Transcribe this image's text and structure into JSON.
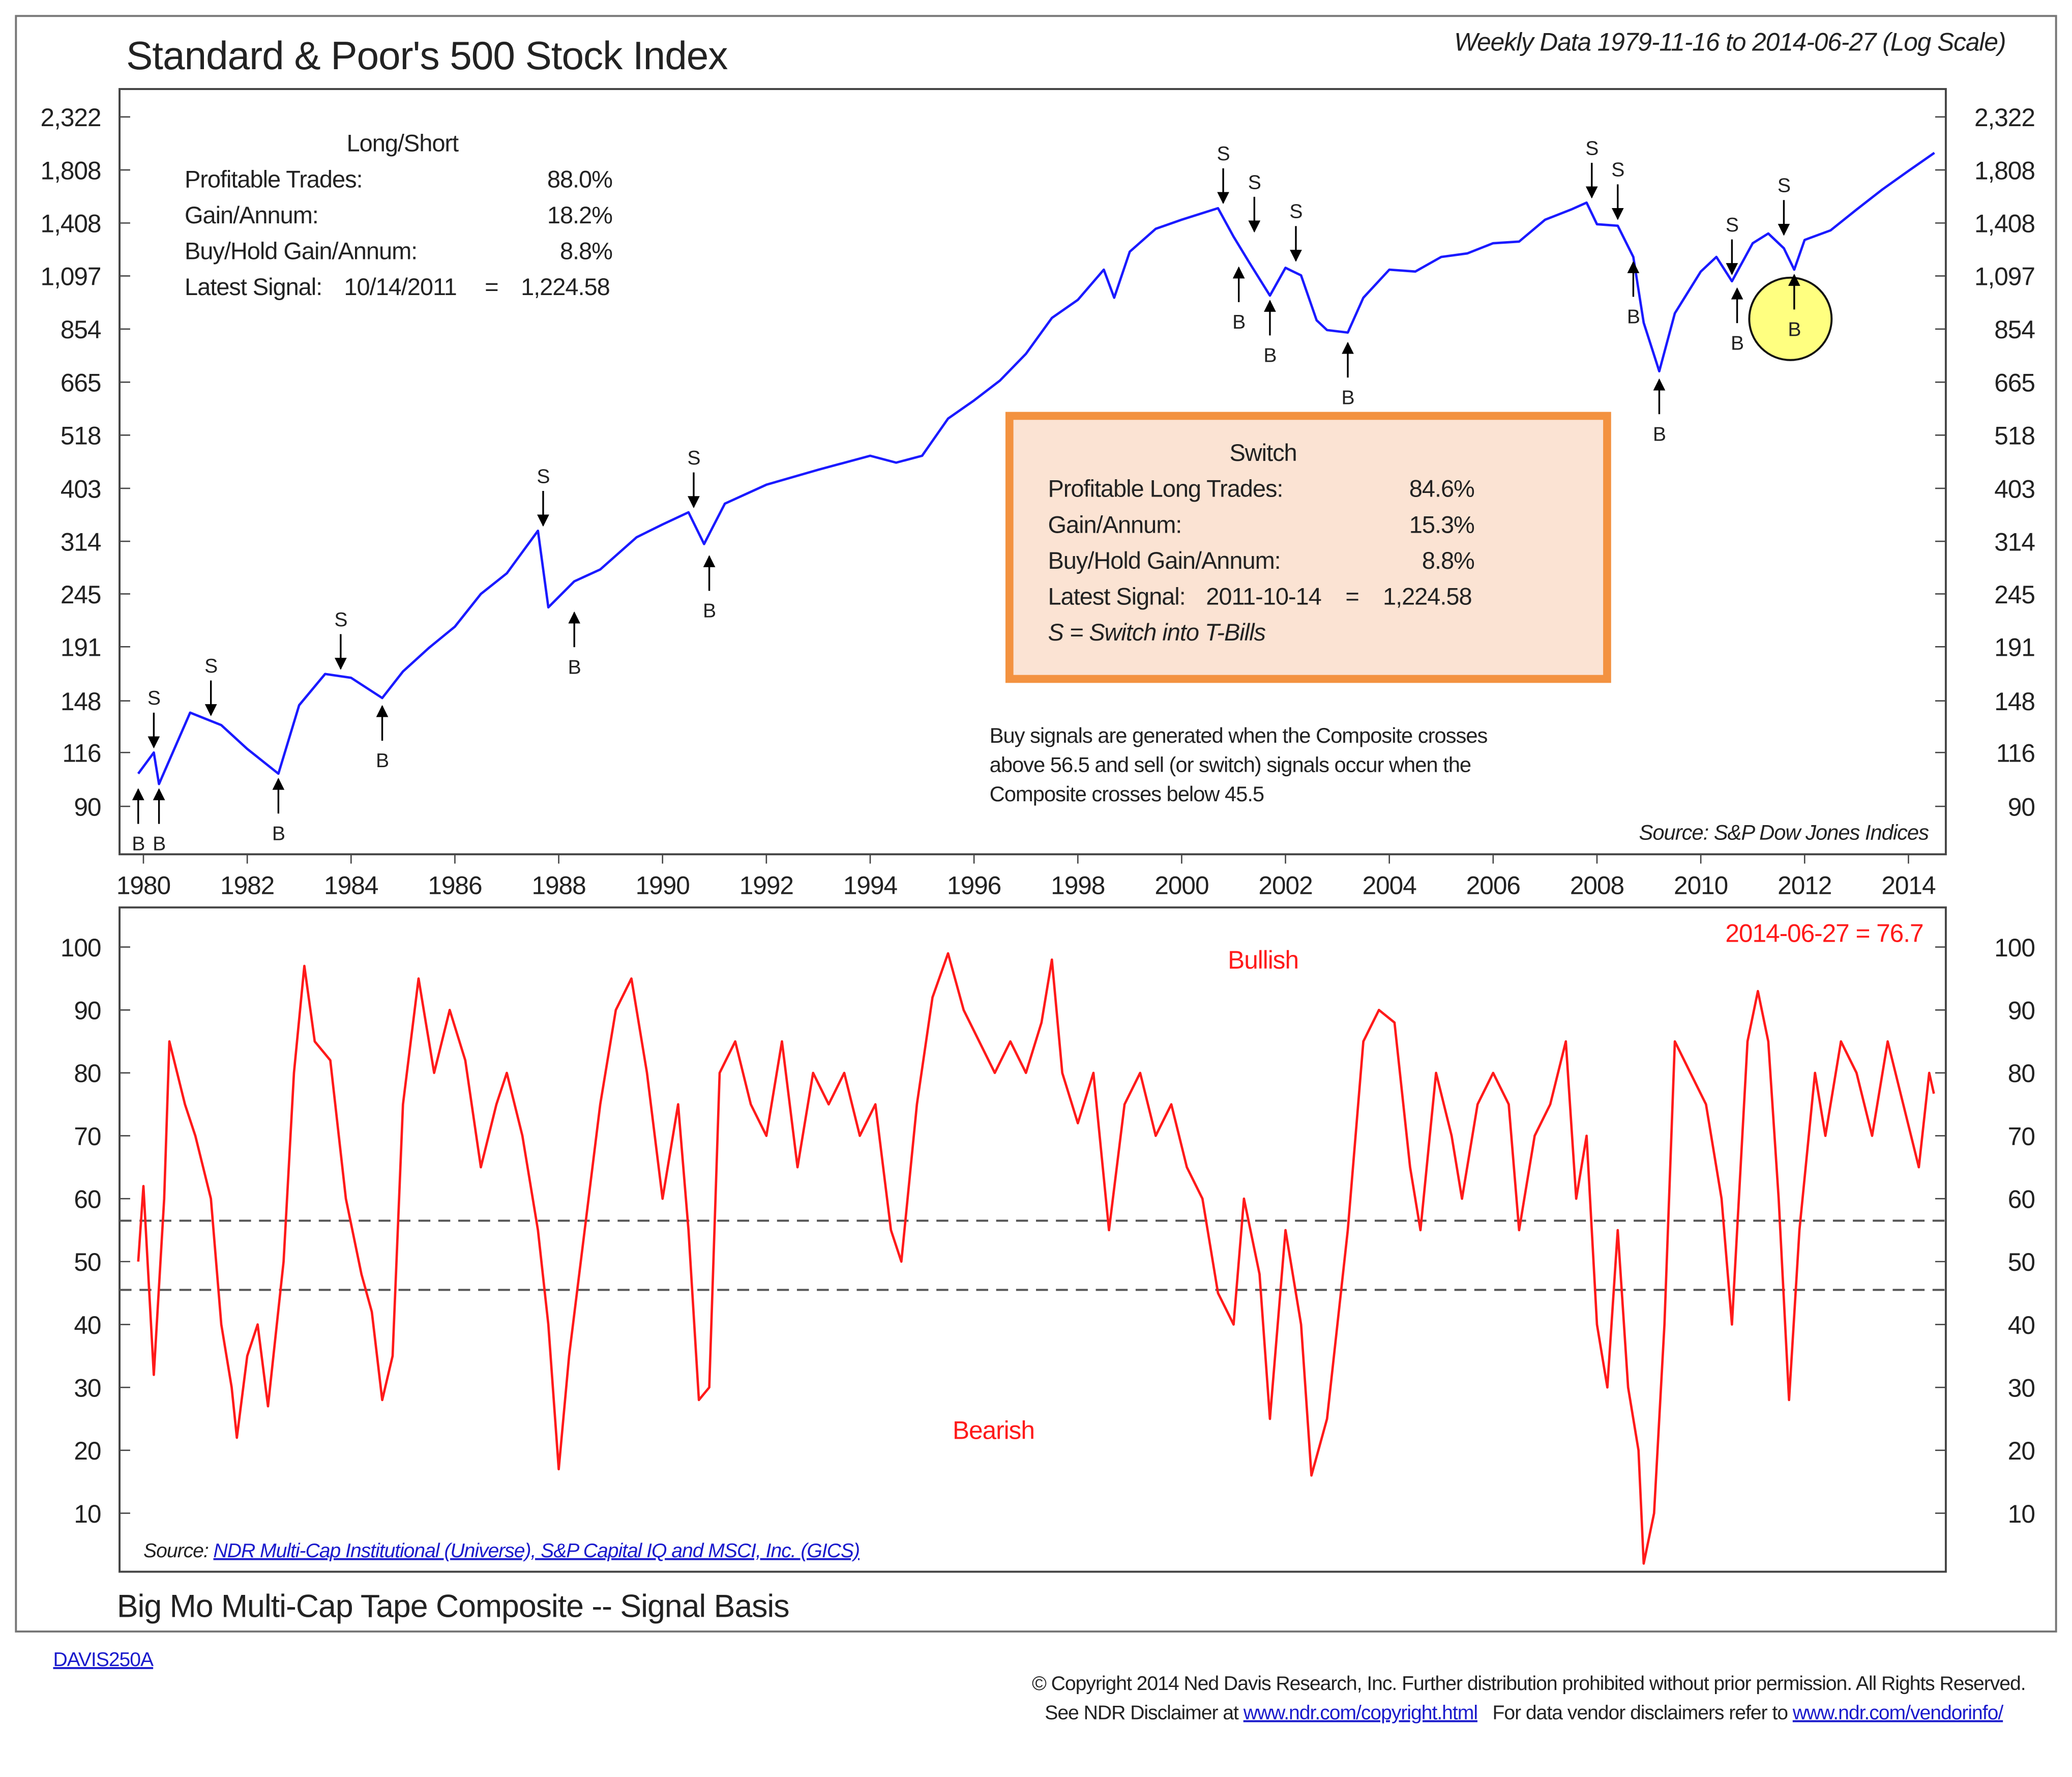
{
  "chart_data": [
    {
      "type": "line",
      "title": "Standard & Poor's 500 Stock Index",
      "subtitle": "Weekly Data 1979-11-16 to 2014-06-27 (Log Scale)",
      "log_scale": true,
      "color": "#1a1aff",
      "xlim": [
        1979.54,
        2014.72
      ],
      "xticks": [
        1980,
        1982,
        1984,
        1986,
        1988,
        1990,
        1992,
        1994,
        1996,
        1998,
        2000,
        2002,
        2004,
        2006,
        2008,
        2010,
        2012,
        2014
      ],
      "ylim": [
        71.8,
        2648
      ],
      "yticks": [
        90,
        116,
        148,
        191,
        245,
        314,
        403,
        518,
        665,
        854,
        {
          "value": 1097,
          "label": "1,097"
        },
        {
          "value": 1408,
          "label": "1,408"
        },
        {
          "value": 1808,
          "label": "1,808"
        },
        {
          "value": 2322,
          "label": "2,322"
        }
      ],
      "x": [
        1979.9,
        1980.2,
        1980.3,
        1980.9,
        1981.5,
        1982.0,
        1982.6,
        1983.0,
        1983.5,
        1984.0,
        1984.6,
        1985.0,
        1985.5,
        1986.0,
        1986.5,
        1987.0,
        1987.6,
        1987.8,
        1988.3,
        1988.8,
        1989.5,
        1990.0,
        1990.5,
        1990.8,
        1991.2,
        1992.0,
        1993.0,
        1994.0,
        1994.5,
        1995.0,
        1995.5,
        1996.0,
        1996.5,
        1997.0,
        1997.5,
        1998.0,
        1998.5,
        1998.7,
        1999.0,
        1999.5,
        2000.0,
        2000.7,
        2001.0,
        2001.3,
        2001.7,
        2002.0,
        2002.3,
        2002.6,
        2002.8,
        2003.2,
        2003.5,
        2004.0,
        2004.5,
        2005.0,
        2005.5,
        2006.0,
        2006.5,
        2007.0,
        2007.5,
        2007.8,
        2008.0,
        2008.4,
        2008.7,
        2008.9,
        2009.2,
        2009.5,
        2010.0,
        2010.3,
        2010.6,
        2011.0,
        2011.3,
        2011.6,
        2011.8,
        2012.0,
        2012.5,
        2013.0,
        2013.5,
        2014.0,
        2014.5
      ],
      "values": [
        105,
        116,
        100,
        140,
        132,
        118,
        105,
        145,
        168,
        165,
        150,
        170,
        190,
        210,
        245,
        270,
        330,
        230,
        260,
        275,
        320,
        340,
        360,
        310,
        375,
        410,
        440,
        470,
        455,
        470,
        560,
        610,
        670,
        760,
        900,
        980,
        1130,
        990,
        1230,
        1370,
        1430,
        1510,
        1320,
        1170,
        1000,
        1140,
        1100,
        890,
        850,
        840,
        990,
        1130,
        1120,
        1200,
        1220,
        1280,
        1290,
        1430,
        1500,
        1550,
        1400,
        1390,
        1200,
        880,
        700,
        920,
        1120,
        1200,
        1070,
        1280,
        1340,
        1250,
        1130,
        1300,
        1360,
        1500,
        1650,
        1800,
        1960
      ],
      "signals": [
        {
          "label": "S",
          "x": 1980.2,
          "value": 116
        },
        {
          "label": "S",
          "x": 1981.3,
          "value": 135
        },
        {
          "label": "S",
          "x": 1983.8,
          "value": 168
        },
        {
          "label": "S",
          "x": 1987.7,
          "value": 330
        },
        {
          "label": "S",
          "x": 1990.6,
          "value": 360
        },
        {
          "label": "S",
          "x": 2000.8,
          "value": 1510
        },
        {
          "label": "S",
          "x": 2001.4,
          "value": 1320
        },
        {
          "label": "S",
          "x": 2002.2,
          "value": 1150
        },
        {
          "label": "S",
          "x": 2007.9,
          "value": 1550
        },
        {
          "label": "S",
          "x": 2008.4,
          "value": 1400
        },
        {
          "label": "S",
          "x": 2010.6,
          "value": 1080
        },
        {
          "label": "S",
          "x": 2011.6,
          "value": 1300
        },
        {
          "label": "B",
          "x": 1979.9,
          "value": 100
        },
        {
          "label": "B",
          "x": 1980.3,
          "value": 100
        },
        {
          "label": "B",
          "x": 1982.6,
          "value": 105
        },
        {
          "label": "B",
          "x": 1984.6,
          "value": 148
        },
        {
          "label": "B",
          "x": 1988.3,
          "value": 230
        },
        {
          "label": "B",
          "x": 1990.9,
          "value": 300
        },
        {
          "label": "B",
          "x": 2001.1,
          "value": 1170
        },
        {
          "label": "B",
          "x": 2001.7,
          "value": 1000
        },
        {
          "label": "B",
          "x": 2003.2,
          "value": 820
        },
        {
          "label": "B",
          "x": 2008.7,
          "value": 1200
        },
        {
          "label": "B",
          "x": 2009.2,
          "value": 690
        },
        {
          "label": "B",
          "x": 2010.7,
          "value": 1060
        },
        {
          "label": "B",
          "x": 2011.8,
          "value": 1130
        }
      ],
      "long_short": {
        "title": "Long/Short",
        "rows": [
          [
            "Profitable Trades:",
            "88.0%"
          ],
          [
            "Gain/Annum:",
            "18.2%"
          ],
          [
            "Buy/Hold Gain/Annum:",
            "8.8%"
          ]
        ],
        "latest": {
          "label": "Latest Signal:",
          "date": "10/14/2011",
          "sep": "=",
          "value": "1,224.58"
        }
      },
      "switch": {
        "title": "Switch",
        "rows": [
          [
            "Profitable Long Trades:",
            "84.6%"
          ],
          [
            "Gain/Annum:",
            "15.3%"
          ],
          [
            "Buy/Hold Gain/Annum:",
            "8.8%"
          ]
        ],
        "latest": {
          "label": "Latest Signal:",
          "date": "2011-10-14",
          "sep": "=",
          "value": "1,224.58"
        },
        "note": "S = Switch into T-Bills"
      },
      "note": [
        "Buy signals are generated when the Composite crosses",
        "above 56.5 and sell (or switch) signals occur when the",
        "Composite crosses below 45.5"
      ],
      "source": "Source:  S&P Dow Jones Indices"
    },
    {
      "type": "line",
      "title": "Big Mo Multi-Cap Tape Composite -- Signal Basis",
      "color": "#ff1a1a",
      "xlim": [
        1979.54,
        2014.72
      ],
      "ylim": [
        0.7,
        106.3
      ],
      "yticks": [
        10,
        20,
        30,
        40,
        50,
        60,
        70,
        80,
        90,
        100
      ],
      "thresholds": [
        56.5,
        45.5
      ],
      "x": [
        1979.9,
        1980.0,
        1980.2,
        1980.4,
        1980.5,
        1980.8,
        1981.0,
        1981.3,
        1981.5,
        1981.7,
        1981.8,
        1982.0,
        1982.2,
        1982.4,
        1982.7,
        1982.9,
        1983.1,
        1983.3,
        1983.6,
        1983.9,
        1984.2,
        1984.4,
        1984.6,
        1984.8,
        1985.0,
        1985.3,
        1985.6,
        1985.9,
        1986.2,
        1986.5,
        1986.8,
        1987.0,
        1987.3,
        1987.6,
        1987.8,
        1988.0,
        1988.2,
        1988.5,
        1988.8,
        1989.1,
        1989.4,
        1989.7,
        1990.0,
        1990.3,
        1990.5,
        1990.7,
        1990.9,
        1991.1,
        1991.4,
        1991.7,
        1992.0,
        1992.3,
        1992.6,
        1992.9,
        1993.2,
        1993.5,
        1993.8,
        1994.1,
        1994.4,
        1994.6,
        1994.9,
        1995.2,
        1995.5,
        1995.8,
        1996.1,
        1996.4,
        1996.7,
        1997.0,
        1997.3,
        1997.5,
        1997.7,
        1998.0,
        1998.3,
        1998.6,
        1998.9,
        1999.2,
        1999.5,
        1999.8,
        2000.1,
        2000.4,
        2000.7,
        2001.0,
        2001.2,
        2001.5,
        2001.7,
        2002.0,
        2002.3,
        2002.5,
        2002.8,
        2003.2,
        2003.5,
        2003.8,
        2004.1,
        2004.4,
        2004.6,
        2004.9,
        2005.2,
        2005.4,
        2005.7,
        2006.0,
        2006.3,
        2006.5,
        2006.8,
        2007.1,
        2007.4,
        2007.6,
        2007.8,
        2008.0,
        2008.2,
        2008.4,
        2008.6,
        2008.8,
        2008.9,
        2009.1,
        2009.3,
        2009.5,
        2009.8,
        2010.1,
        2010.4,
        2010.6,
        2010.9,
        2011.1,
        2011.3,
        2011.5,
        2011.7,
        2011.9,
        2012.2,
        2012.4,
        2012.7,
        2013.0,
        2013.3,
        2013.6,
        2013.9,
        2014.2,
        2014.4,
        2014.49
      ],
      "values": [
        50,
        62,
        32,
        60,
        85,
        75,
        70,
        60,
        40,
        30,
        22,
        35,
        40,
        27,
        50,
        80,
        97,
        85,
        82,
        60,
        48,
        42,
        28,
        35,
        75,
        95,
        80,
        90,
        82,
        65,
        75,
        80,
        70,
        55,
        40,
        17,
        35,
        55,
        75,
        90,
        95,
        80,
        60,
        75,
        55,
        28,
        30,
        80,
        85,
        75,
        70,
        85,
        65,
        80,
        75,
        80,
        70,
        75,
        55,
        50,
        75,
        92,
        99,
        90,
        85,
        80,
        85,
        80,
        88,
        98,
        80,
        72,
        80,
        55,
        75,
        80,
        70,
        75,
        65,
        60,
        45,
        40,
        60,
        48,
        25,
        55,
        40,
        16,
        25,
        55,
        85,
        90,
        88,
        65,
        55,
        80,
        70,
        60,
        75,
        80,
        75,
        55,
        70,
        75,
        85,
        60,
        70,
        40,
        30,
        55,
        30,
        20,
        2,
        10,
        40,
        85,
        80,
        75,
        60,
        40,
        85,
        93,
        85,
        60,
        28,
        55,
        80,
        70,
        85,
        80,
        70,
        85,
        75,
        65,
        80,
        76.7
      ],
      "annotation": "2014-06-27 = 76.7",
      "bullish": "Bullish",
      "bearish": "Bearish",
      "source": {
        "label": "Source:",
        "link": "NDR Multi-Cap Institutional (Universe), S&P Capital IQ and MSCI, Inc. (GICS)"
      }
    }
  ],
  "footer": {
    "id": "DAVIS250A",
    "copyright": "© Copyright 2014 Ned Davis Research, Inc. Further distribution prohibited without prior permission. All Rights Reserved.",
    "disclaimer": "See NDR Disclaimer at ",
    "link1": "www.ndr.com/copyright.html",
    "vendor": "   For data vendor disclaimers refer to ",
    "link2": "www.ndr.com/vendorinfo/"
  }
}
